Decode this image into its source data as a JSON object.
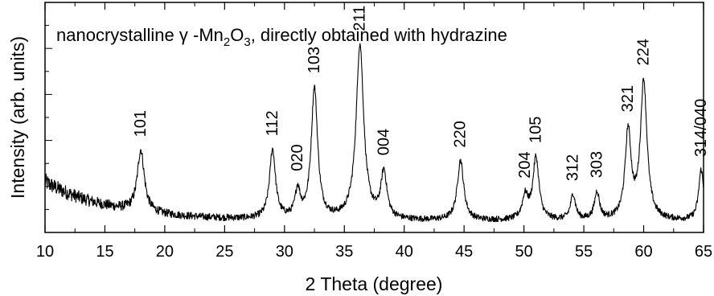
{
  "chart_data": {
    "type": "line",
    "title_parts": {
      "prefix": "nanocrystalline ",
      "gamma": "γ",
      "formula_a": " -Mn",
      "sub_a": "2",
      "formula_b": "O",
      "sub_b": "3",
      "suffix": ", directly obtained with hydrazine"
    },
    "xlabel": "2 Theta (degree)",
    "ylabel": "Intensity (arb. units)",
    "xlim": [
      10,
      65
    ],
    "ylim": [
      0,
      100
    ],
    "x_ticks": [
      "10",
      "15",
      "20",
      "25",
      "30",
      "35",
      "40",
      "45",
      "50",
      "55",
      "60",
      "65"
    ],
    "y_ticks_labeled": false,
    "grid": false,
    "line_color": "#000000",
    "peaks": [
      {
        "label": "101",
        "x": 18.0,
        "height": 27,
        "width": 0.35
      },
      {
        "label": "112",
        "x": 29.0,
        "height": 30,
        "width": 0.3
      },
      {
        "label": "020",
        "x": 31.1,
        "height": 12,
        "width": 0.25
      },
      {
        "label": "103",
        "x": 32.5,
        "height": 57,
        "width": 0.32
      },
      {
        "label": "211",
        "x": 36.3,
        "height": 76,
        "width": 0.38
      },
      {
        "label": "004",
        "x": 38.3,
        "height": 20,
        "width": 0.3
      },
      {
        "label": "220",
        "x": 44.7,
        "height": 26,
        "width": 0.32
      },
      {
        "label": "204",
        "x": 50.1,
        "height": 10,
        "width": 0.3
      },
      {
        "label": "105",
        "x": 51.0,
        "height": 27,
        "width": 0.3
      },
      {
        "label": "312",
        "x": 54.1,
        "height": 11,
        "width": 0.25
      },
      {
        "label": "303",
        "x": 56.1,
        "height": 12,
        "width": 0.25
      },
      {
        "label": "321",
        "x": 58.7,
        "height": 38,
        "width": 0.3
      },
      {
        "label": "224",
        "x": 60.0,
        "height": 60,
        "width": 0.33
      },
      {
        "label": "314/040",
        "x": 64.8,
        "height": 22,
        "width": 0.25
      }
    ]
  }
}
